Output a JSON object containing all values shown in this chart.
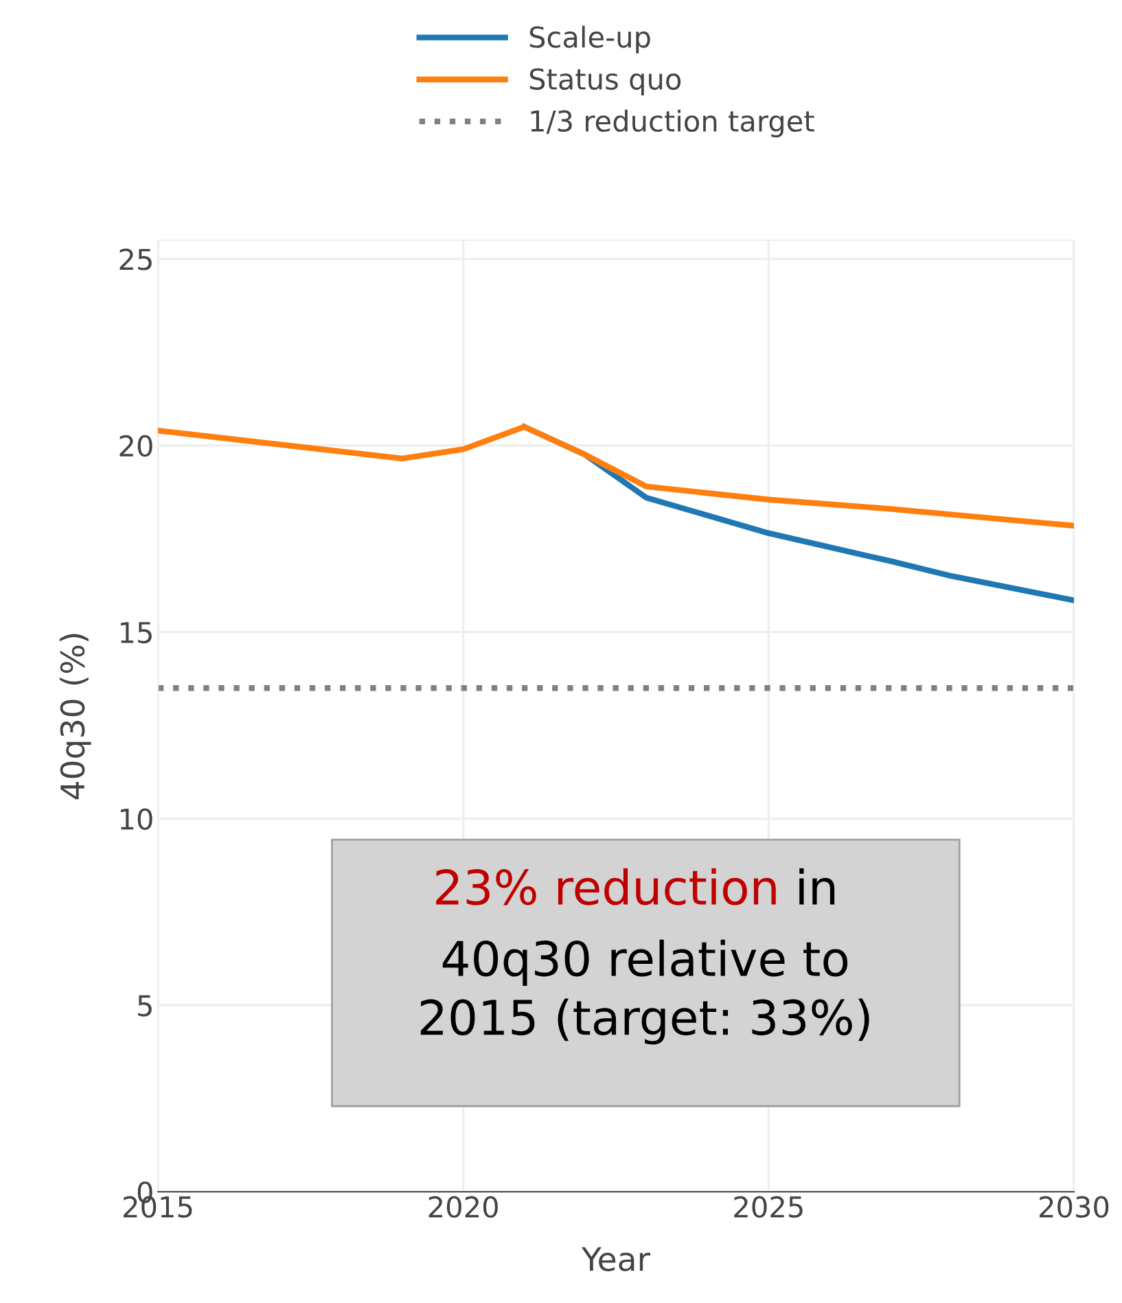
{
  "chart_data": {
    "type": "line",
    "xlabel": "Year",
    "ylabel": "40q30 (%)",
    "xlim": [
      2015,
      2030
    ],
    "xticks": [
      2015,
      2020,
      2025,
      2030
    ],
    "ylim": [
      0,
      25.5
    ],
    "yticks": [
      0,
      5,
      10,
      15,
      20,
      25
    ],
    "grid": true,
    "legend": "top",
    "marker": "none",
    "series": [
      {
        "name": "Scale-up",
        "color": "#1f77b4",
        "x": [
          2021,
          2022,
          2023,
          2025,
          2027,
          2028,
          2030
        ],
        "values": [
          20.5,
          19.75,
          18.6,
          17.65,
          16.9,
          16.5,
          15.85
        ]
      },
      {
        "name": "Status quo",
        "color": "#ff7f0e",
        "x": [
          2015,
          2019,
          2020,
          2021,
          2022,
          2023,
          2025,
          2027,
          2030
        ],
        "values": [
          20.4,
          19.65,
          19.9,
          20.5,
          19.75,
          18.9,
          18.55,
          18.3,
          17.85
        ]
      }
    ],
    "ref_lines": [
      {
        "axis": "y",
        "value": 13.5,
        "label": "1/3 reduction target",
        "color": "#808080",
        "line_style": "dotted"
      }
    ],
    "annotations": [
      "23% reduction",
      "in\n40q30 relative to\n2015 (target: 33%)"
    ]
  }
}
